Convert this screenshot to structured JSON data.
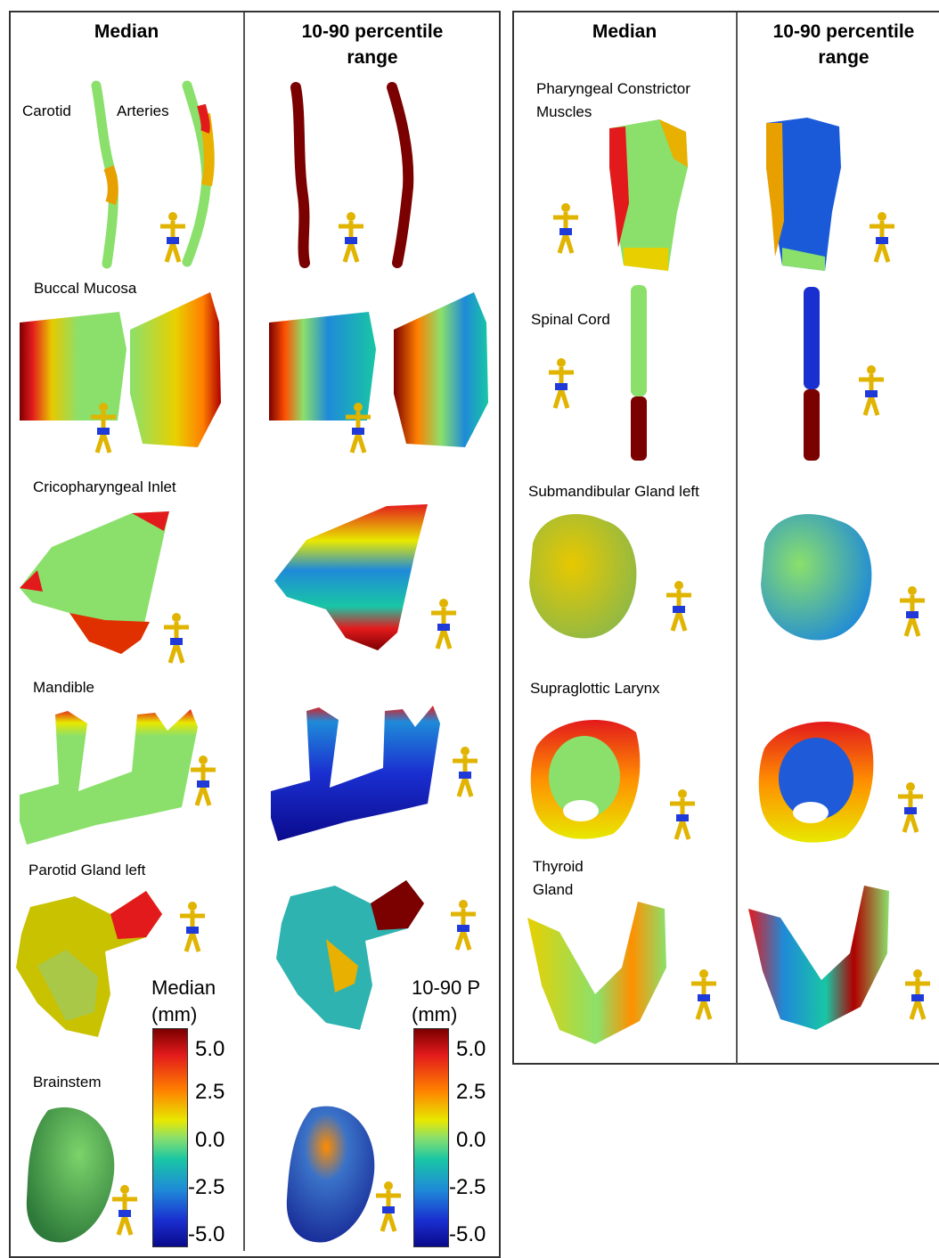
{
  "headers": {
    "left_median": "Median",
    "left_range_line1": "10-90 percentile",
    "left_range_line2": "range",
    "right_median": "Median",
    "right_range_line1": "10-90 percentile",
    "right_range_line2": "range"
  },
  "organs_left": {
    "carotid_word1": "Carotid",
    "carotid_word2": "Arteries",
    "buccal": "Buccal Mucosa",
    "crico": "Cricopharyngeal Inlet",
    "mandible": "Mandible",
    "parotid": "Parotid Gland left",
    "brainstem": "Brainstem"
  },
  "organs_right": {
    "pharyngeal_line1": "Pharyngeal Constrictor",
    "pharyngeal_line2": "Muscles",
    "spinal": "Spinal Cord",
    "submand": "Submandibular Gland left",
    "supraglottic": "Supraglottic Larynx",
    "thyroid_line1": "Thyroid",
    "thyroid_line2": "Gland"
  },
  "scales": {
    "median": {
      "title1": "Median",
      "title2": "(mm)",
      "ticks": [
        "5.0",
        "2.5",
        "0.0",
        "-2.5",
        "-5.0"
      ]
    },
    "range": {
      "title1": "10-90 P",
      "title2": "(mm)",
      "ticks": [
        "5.0",
        "2.5",
        "0.0",
        "-2.5",
        "-5.0"
      ]
    }
  },
  "colors": {
    "dark_red": "#7b0000",
    "red": "#e31a1c",
    "orange": "#ff7f00",
    "yellow": "#e8e800",
    "green": "#8be06b",
    "cyan": "#19c6a5",
    "blue": "#1f8ad8",
    "dark_blue": "#0a0a8c"
  }
}
